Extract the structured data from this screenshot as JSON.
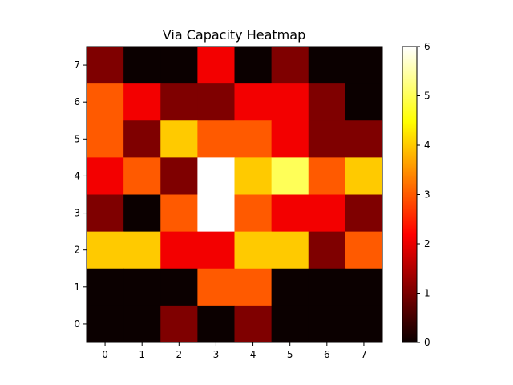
{
  "chart_data": {
    "type": "heatmap",
    "title": "Via Capacity Heatmap",
    "xlabel": "",
    "ylabel": "",
    "colormap": "hot",
    "x_ticks": [
      "0",
      "1",
      "2",
      "3",
      "4",
      "5",
      "6",
      "7"
    ],
    "y_ticks": [
      "0",
      "1",
      "2",
      "3",
      "4",
      "5",
      "6",
      "7"
    ],
    "colorbar_ticks": [
      "0",
      "1",
      "2",
      "3",
      "4",
      "5",
      "6"
    ],
    "vmin": 0,
    "vmax": 6,
    "grid": false,
    "colorbar_placement": "right",
    "rows": [
      {
        "y": 7,
        "values": [
          1,
          0,
          0,
          2,
          0,
          1,
          0,
          0
        ]
      },
      {
        "y": 6,
        "values": [
          3,
          2,
          1,
          1,
          2,
          2,
          1,
          0
        ]
      },
      {
        "y": 5,
        "values": [
          3,
          1,
          4,
          3,
          3,
          2,
          1,
          1
        ]
      },
      {
        "y": 4,
        "values": [
          2,
          3,
          1,
          6,
          4,
          5,
          3,
          4
        ]
      },
      {
        "y": 3,
        "values": [
          1,
          0,
          3,
          6,
          3,
          2,
          2,
          1
        ]
      },
      {
        "y": 2,
        "values": [
          4,
          4,
          2,
          2,
          4,
          4,
          1,
          3
        ]
      },
      {
        "y": 1,
        "values": [
          0,
          0,
          0,
          3,
          3,
          0,
          0,
          0
        ]
      },
      {
        "y": 0,
        "values": [
          0,
          0,
          1,
          0,
          1,
          0,
          0,
          0
        ]
      }
    ]
  }
}
